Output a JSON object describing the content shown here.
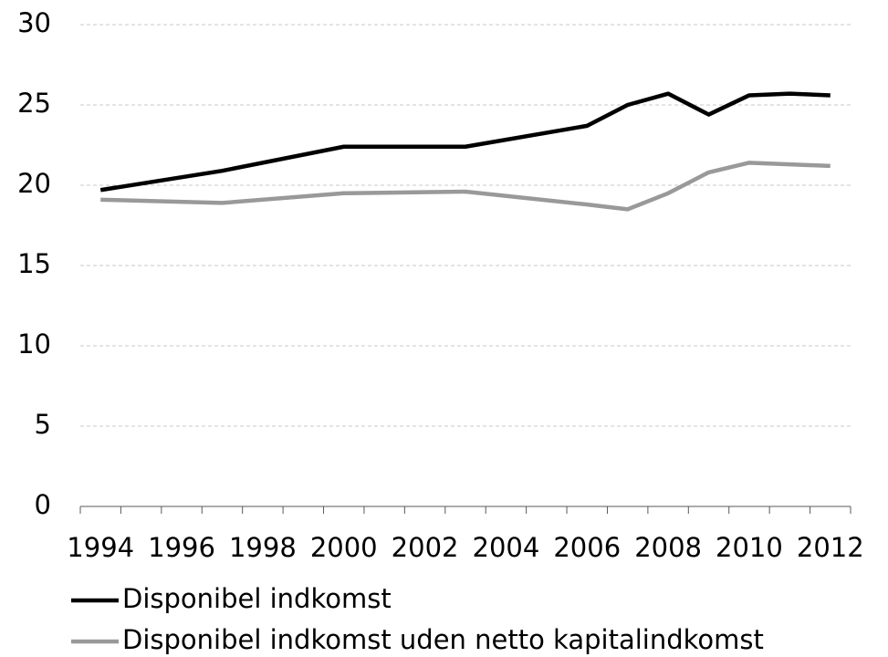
{
  "chart_data": {
    "type": "line",
    "x": [
      1994,
      1997,
      2000,
      2003,
      2006,
      2007,
      2008,
      2009,
      2010,
      2011,
      2012
    ],
    "series": [
      {
        "name": "Disponibel indkomst",
        "color": "#000000",
        "values": [
          19.7,
          20.9,
          22.4,
          22.4,
          23.7,
          25.0,
          25.7,
          24.4,
          25.6,
          25.7,
          25.6
        ]
      },
      {
        "name": "Disponibel indkomst uden netto kapitalindkomst",
        "color": "#999999",
        "values": [
          19.1,
          18.9,
          19.5,
          19.6,
          18.8,
          18.5,
          19.5,
          20.8,
          21.4,
          21.3,
          21.2
        ]
      }
    ],
    "xlim": [
      1993.5,
      2012.5
    ],
    "xticks": [
      1994,
      1996,
      1998,
      2000,
      2002,
      2004,
      2006,
      2008,
      2010,
      2012
    ],
    "ylim": [
      0,
      30
    ],
    "yticks": [
      0,
      5,
      10,
      15,
      20,
      25,
      30
    ],
    "grid": true,
    "legend": "bottom"
  }
}
